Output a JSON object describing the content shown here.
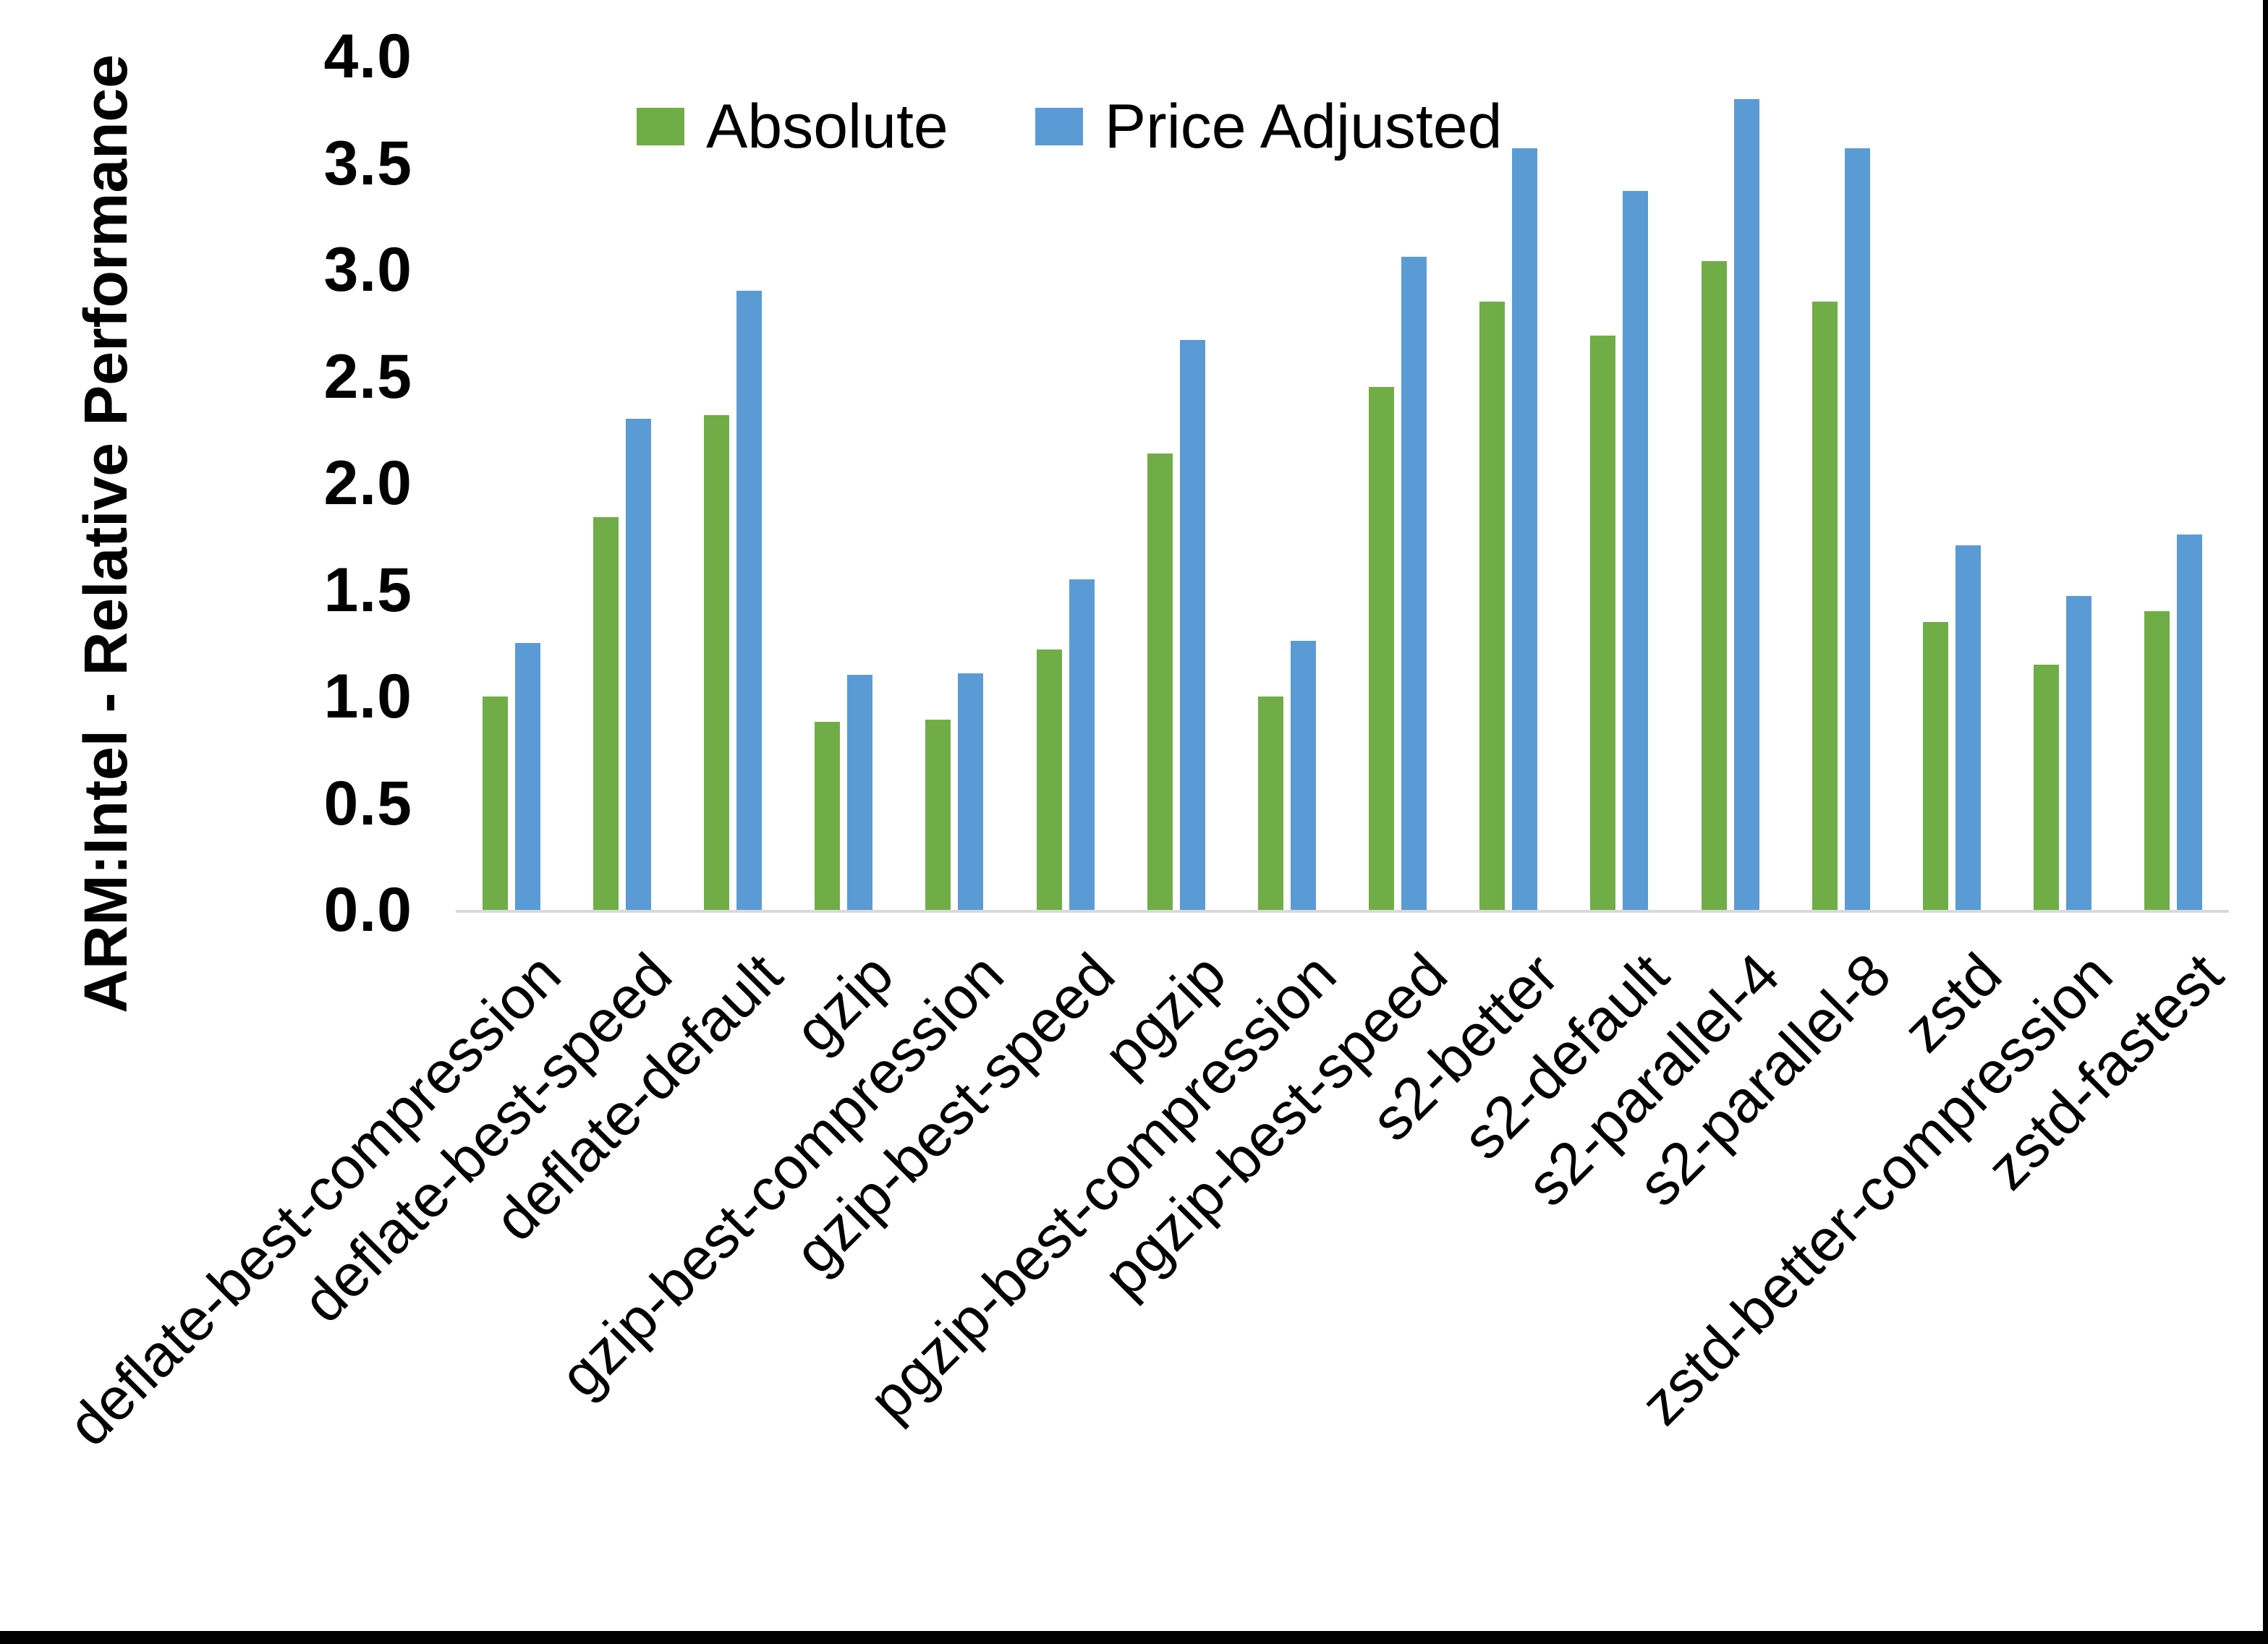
{
  "chart_data": {
    "type": "bar",
    "title": "",
    "xlabel": "",
    "ylabel": "ARM:Intel - Relative Performance",
    "ylim": [
      0.0,
      4.0
    ],
    "ytick_labels": [
      "0.0",
      "0.5",
      "1.0",
      "1.5",
      "2.0",
      "2.5",
      "3.0",
      "3.5",
      "4.0"
    ],
    "grid": false,
    "legend_position": "top-center",
    "categories": [
      "deflate-best-compression",
      "deflate-best-speed",
      "deflate-default",
      "gzip",
      "gzip-best-compression",
      "gzip-best-speed",
      "pgzip",
      "pgzip-best-compression",
      "pgzip-best-speed",
      "s2-better",
      "s2-default",
      "s2-parallel-4",
      "s2-parallel-8",
      "zstd",
      "zstd-better-compression",
      "zstd-fastest"
    ],
    "series": [
      {
        "name": "Absolute",
        "color": "#70AD47",
        "values": [
          1.0,
          1.84,
          2.32,
          0.88,
          0.89,
          1.22,
          2.14,
          1.0,
          2.45,
          2.85,
          2.69,
          3.04,
          2.85,
          1.35,
          1.15,
          1.4
        ]
      },
      {
        "name": "Price Adjusted",
        "color": "#5B9BD5",
        "values": [
          1.25,
          2.3,
          2.9,
          1.1,
          1.11,
          1.55,
          2.67,
          1.26,
          3.06,
          3.57,
          3.37,
          3.8,
          3.57,
          1.71,
          1.47,
          1.76
        ]
      }
    ],
    "colors": {
      "axis_line": "#D9D9D9",
      "text": "#000000",
      "frame": "#000000"
    }
  }
}
